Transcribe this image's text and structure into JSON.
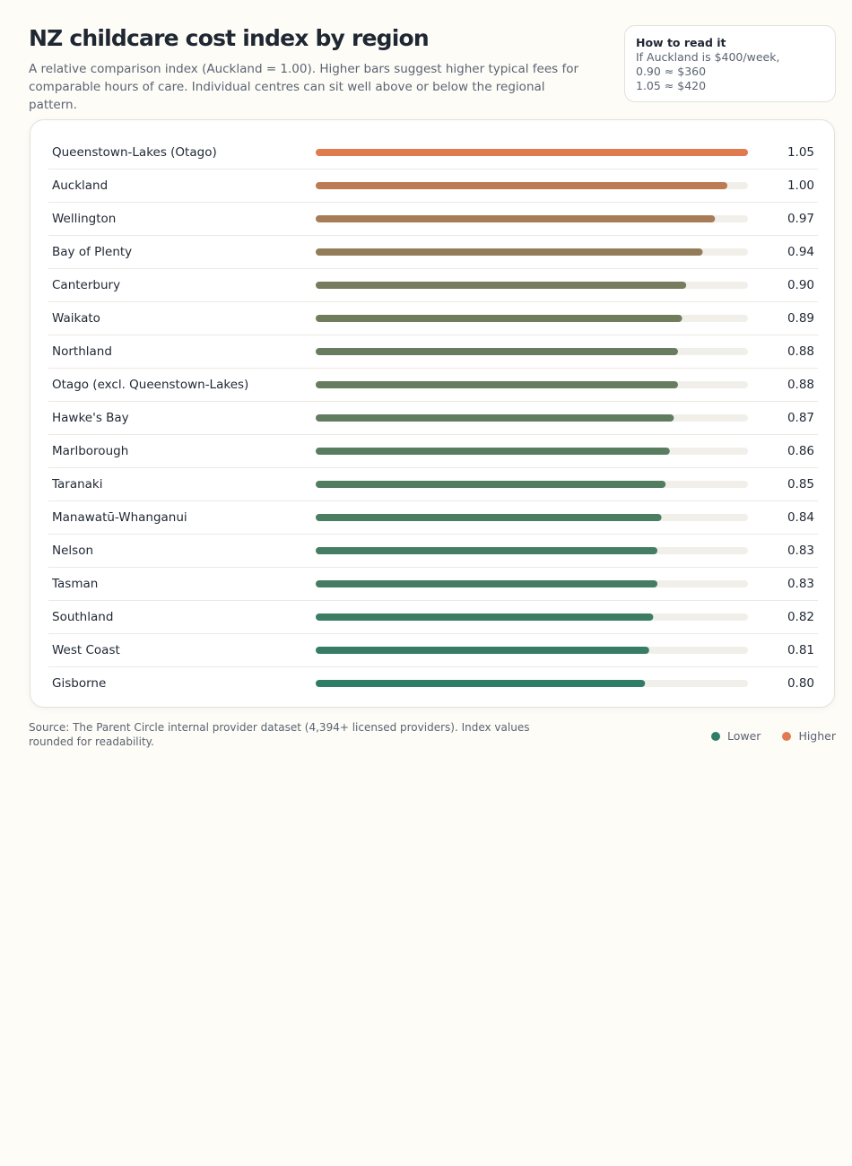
{
  "chart_data": {
    "type": "bar",
    "orientation": "horizontal",
    "title": "NZ childcare cost index by region",
    "subtitle": "A relative comparison index (Auckland = 1.00). Higher bars suggest higher typical fees for comparable hours of care. Individual centres can sit well above or below the regional pattern.",
    "note_title": "How to read it",
    "note_lines": [
      "If Auckland is $400/week,",
      "0.90 ≈ $360",
      "1.05 ≈ $420"
    ],
    "categories": [
      "Queenstown-Lakes (Otago)",
      "Auckland",
      "Wellington",
      "Bay of Plenty",
      "Canterbury",
      "Waikato",
      "Northland",
      "Otago (excl. Queenstown-Lakes)",
      "Hawke's Bay",
      "Marlborough",
      "Taranaki",
      "Manawatū-Whanganui",
      "Nelson",
      "Tasman",
      "Southland",
      "West Coast",
      "Gisborne"
    ],
    "values": [
      1.05,
      1.0,
      0.97,
      0.94,
      0.9,
      0.89,
      0.88,
      0.88,
      0.87,
      0.86,
      0.85,
      0.84,
      0.83,
      0.83,
      0.82,
      0.81,
      0.8
    ],
    "value_labels": [
      "1.05",
      "1.00",
      "0.97",
      "0.94",
      "0.90",
      "0.89",
      "0.88",
      "0.88",
      "0.87",
      "0.86",
      "0.85",
      "0.84",
      "0.83",
      "0.83",
      "0.82",
      "0.81",
      "0.80"
    ],
    "xlim": [
      0,
      1.05
    ],
    "legend": [
      {
        "name": "Lower",
        "color": "#2f7d66"
      },
      {
        "name": "Higher",
        "color": "#e07b4f"
      }
    ],
    "source": "Source: The Parent Circle internal provider dataset (4,394+ licensed providers). Index values rounded for readability."
  }
}
